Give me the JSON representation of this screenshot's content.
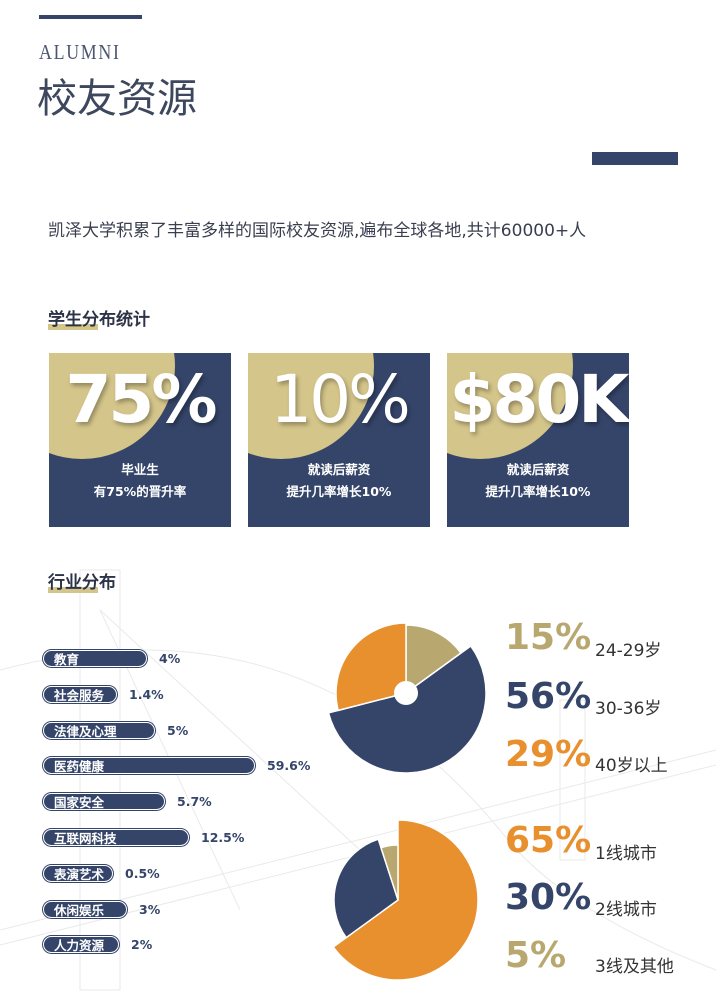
{
  "header": {
    "eyebrow": "ALUMNI",
    "title": "校友资源"
  },
  "intro": "凯泽大学积累了丰富多样的国际校友资源,遍布全球各地,共计60000+人",
  "stats": {
    "heading": "学生分布统计",
    "cards": [
      {
        "value": "75%",
        "line1": "毕业生",
        "line2": "有75%的晋升率"
      },
      {
        "value": "10%",
        "line1": "就读后薪资",
        "line2": "提升几率增长10%"
      },
      {
        "value": "$80K",
        "line1": "就读后薪资",
        "line2": "提升几率增长10%"
      }
    ]
  },
  "industry": {
    "heading": "行业分布",
    "items": [
      {
        "label": "教育",
        "value": "4%"
      },
      {
        "label": "社会服务",
        "value": "1.4%"
      },
      {
        "label": "法律及心理",
        "value": "5%"
      },
      {
        "label": "医药健康",
        "value": "59.6%"
      },
      {
        "label": "国家安全",
        "value": "5.7%"
      },
      {
        "label": "互联网科技",
        "value": "12.5%"
      },
      {
        "label": "表演艺术",
        "value": "0.5%"
      },
      {
        "label": "休闲娱乐",
        "value": "3%"
      },
      {
        "label": "人力资源",
        "value": "2%"
      }
    ]
  },
  "colors": {
    "navy": "#35456a",
    "gold": "#d4c58a",
    "tan": "#b8a870",
    "orange": "#e88f2e"
  },
  "chart_data": [
    {
      "type": "pie",
      "categories": [
        "24-29岁",
        "30-36岁",
        "40岁以上"
      ],
      "values": [
        15,
        56,
        29
      ],
      "labels": [
        "15%",
        "56%",
        "29%"
      ],
      "colors": [
        "#b8a870",
        "#35456a",
        "#e88f2e"
      ]
    },
    {
      "type": "pie",
      "categories": [
        "1线城市",
        "2线城市",
        "3线及其他"
      ],
      "values": [
        65,
        30,
        5
      ],
      "labels": [
        "65%",
        "30%",
        "5%"
      ],
      "colors": [
        "#e88f2e",
        "#35456a",
        "#b8a870"
      ]
    }
  ]
}
